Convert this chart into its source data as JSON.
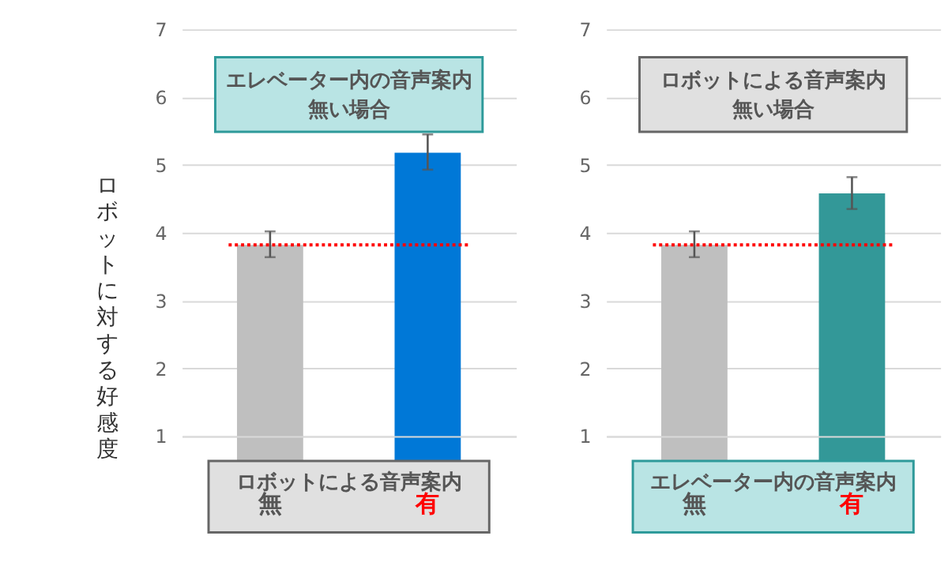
{
  "chart_data": [
    {
      "type": "bar",
      "title": "エレベーター内の音声案内",
      "subtitle": "無い場合",
      "ylabel": "ロボットに対する好感度",
      "xlabel": "ロボットによる音声案内",
      "categories": [
        "無",
        "有"
      ],
      "values": [
        3.82,
        5.18
      ],
      "colors": [
        "#bfbfbf",
        "#0078d7"
      ],
      "errors": [
        [
          3.64,
          4.02
        ],
        [
          4.93,
          5.45
        ]
      ],
      "ylim": [
        1,
        7
      ],
      "yticks": [
        1,
        2,
        3,
        4,
        5,
        6,
        7
      ],
      "grid": "y",
      "ref_lines": [
        {
          "axis": "y",
          "value": 3.82,
          "color": "#ff0000",
          "line_style": "dotted"
        }
      ]
    },
    {
      "type": "bar",
      "title": "ロボットによる音声案内",
      "subtitle": "無い場合",
      "xlabel": "エレベーター内の音声案内",
      "categories": [
        "無",
        "有"
      ],
      "values": [
        3.82,
        4.58
      ],
      "colors": [
        "#bfbfbf",
        "#339898"
      ],
      "errors": [
        [
          3.64,
          4.02
        ],
        [
          4.35,
          4.82
        ]
      ],
      "ylim": [
        1,
        7
      ],
      "yticks": [
        1,
        2,
        3,
        4,
        5,
        6,
        7
      ],
      "grid": "y",
      "ref_lines": [
        {
          "axis": "y",
          "value": 3.82,
          "color": "#ff0000",
          "line_style": "dotted"
        }
      ]
    }
  ]
}
